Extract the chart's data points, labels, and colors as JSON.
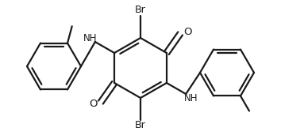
{
  "line_color": "#1a1a1a",
  "bg_color": "#ffffff",
  "line_width": 1.6,
  "figsize": [
    3.54,
    1.76
  ],
  "dpi": 100,
  "xlim": [
    0,
    354
  ],
  "ylim": [
    0,
    176
  ]
}
